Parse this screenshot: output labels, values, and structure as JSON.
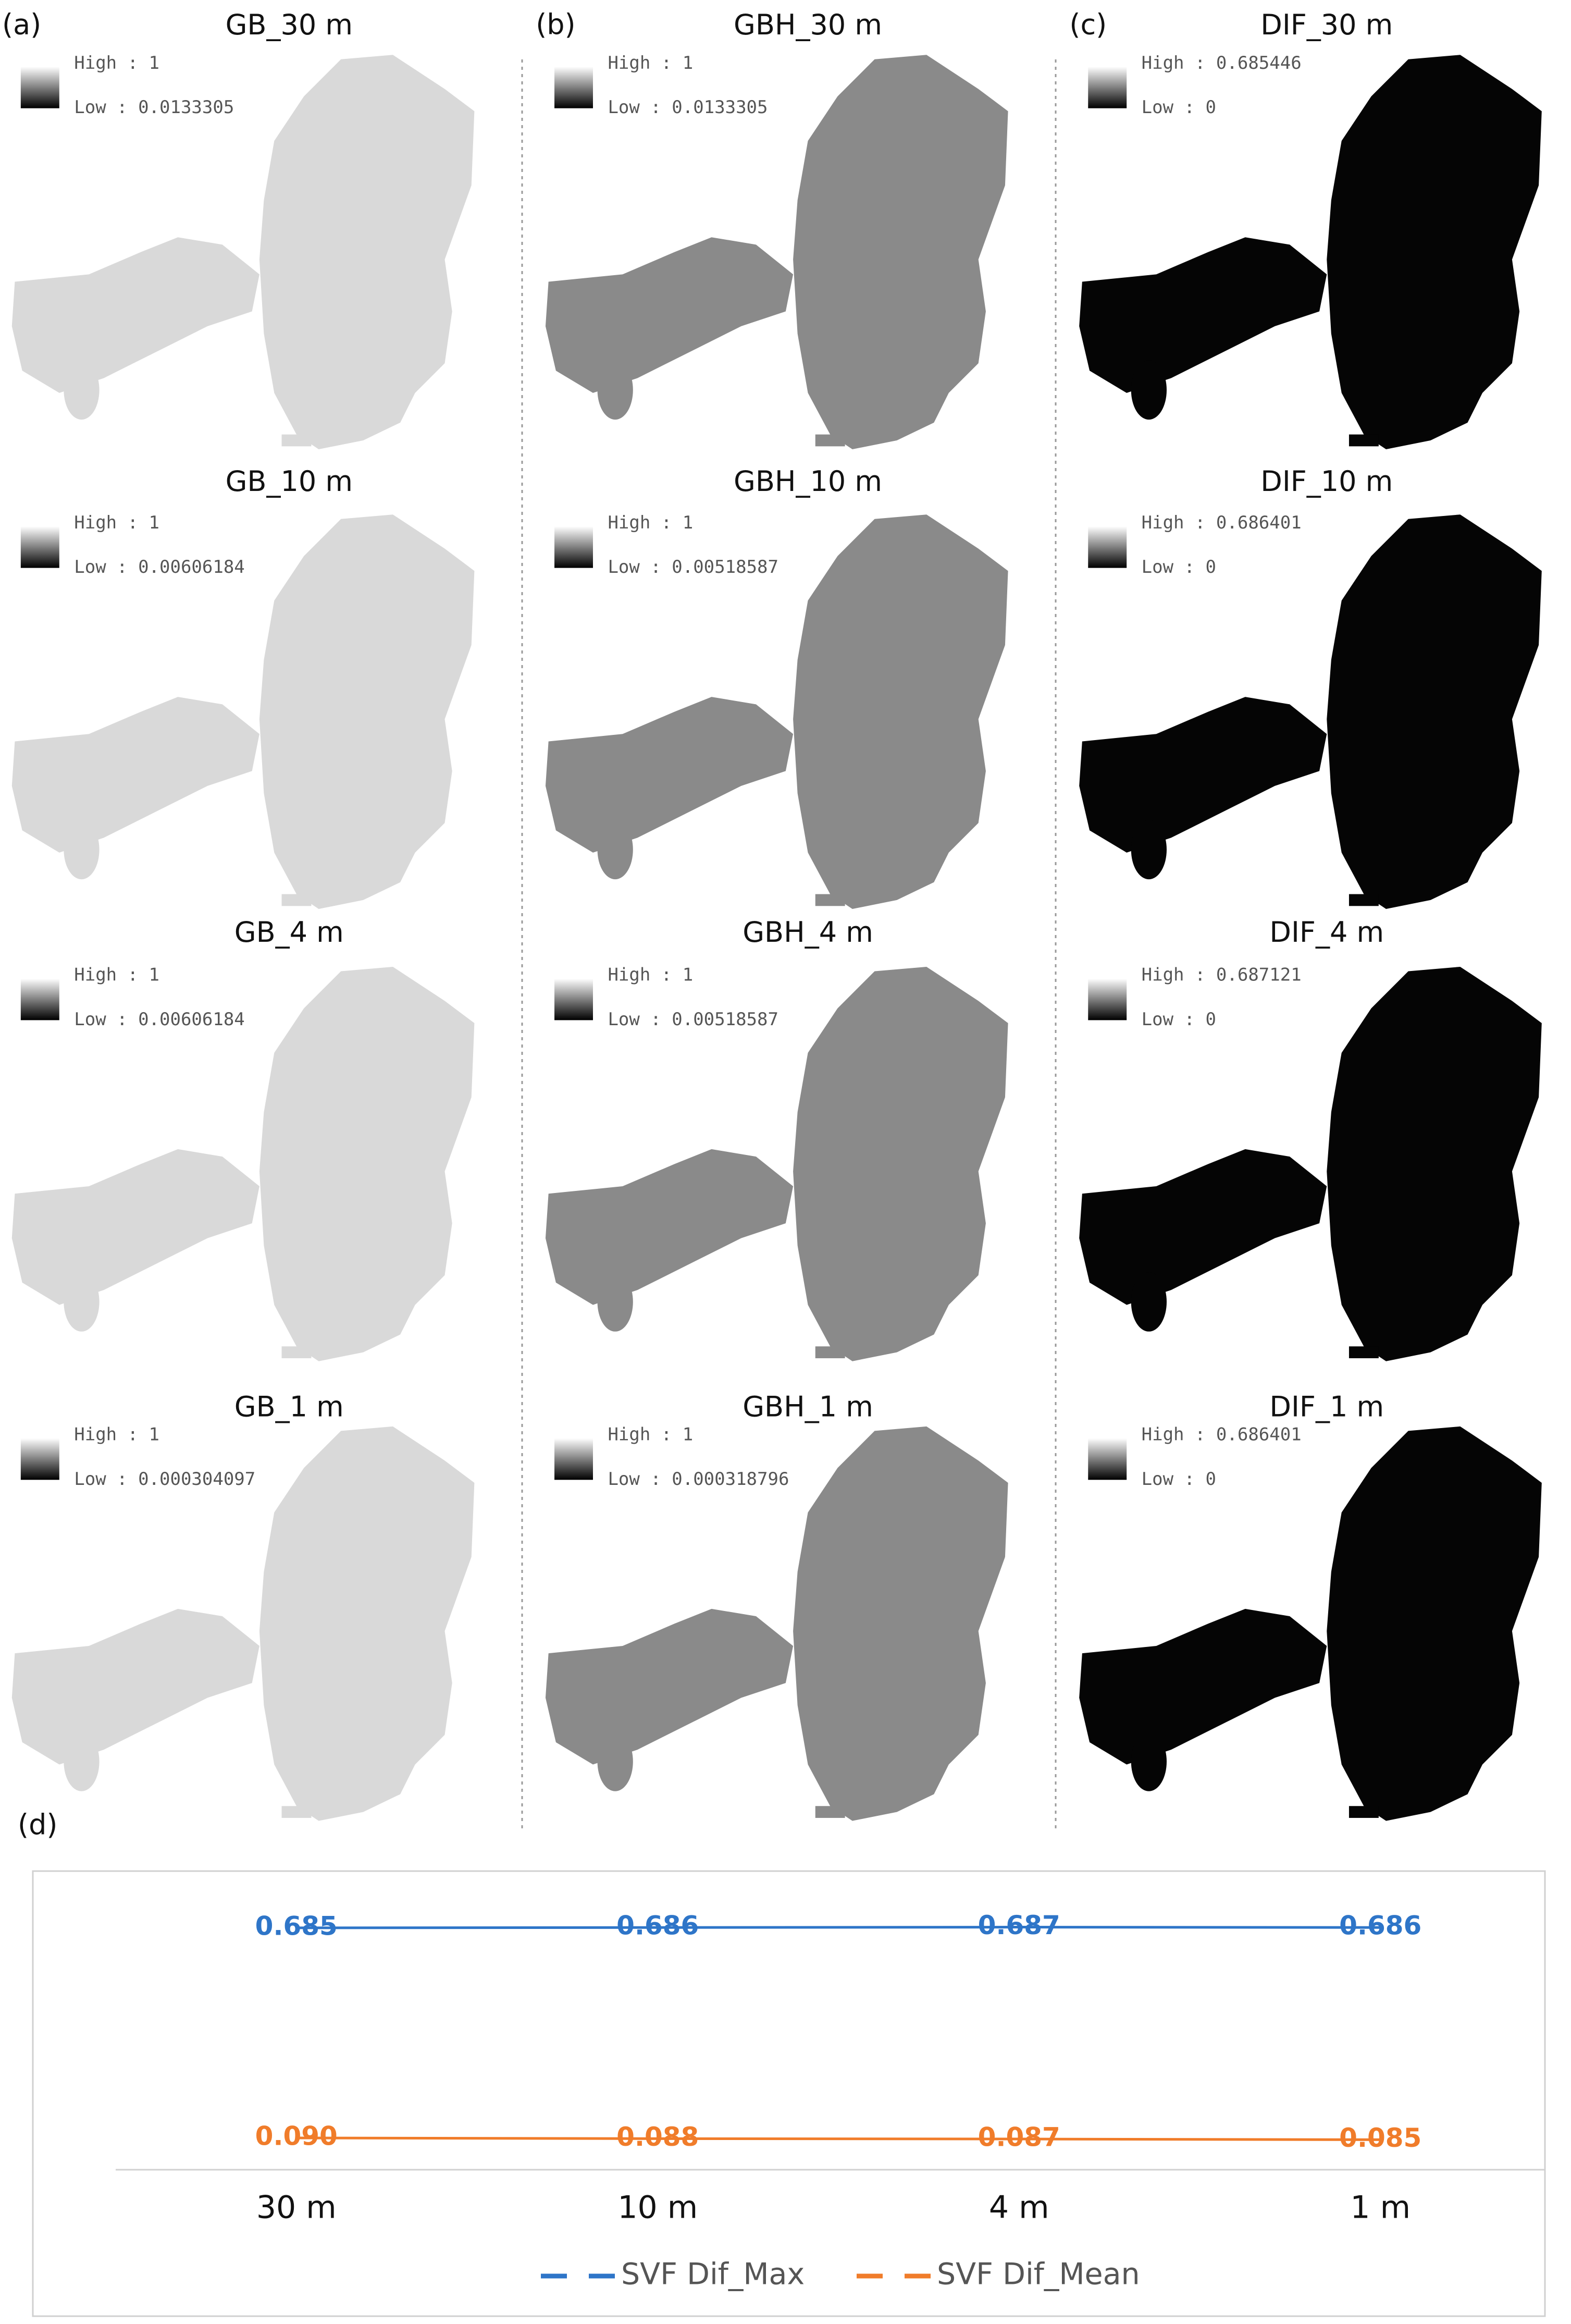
{
  "panels": [
    {
      "label": "(a)",
      "maps": [
        {
          "title": "GB_30 m",
          "high": "High : 1",
          "low": "Low : 0.0133305"
        },
        {
          "title": "GB_10 m",
          "high": "High : 1",
          "low": "Low : 0.00606184"
        },
        {
          "title": "GB_4 m",
          "high": "High : 1",
          "low": "Low : 0.00606184"
        },
        {
          "title": "GB_1 m",
          "high": "High : 1",
          "low": "Low : 0.000304097"
        }
      ]
    },
    {
      "label": "(b)",
      "maps": [
        {
          "title": "GBH_30 m",
          "high": "High : 1",
          "low": "Low : 0.0133305"
        },
        {
          "title": "GBH_10 m",
          "high": "High : 1",
          "low": "Low : 0.00518587"
        },
        {
          "title": "GBH_4 m",
          "high": "High : 1",
          "low": "Low : 0.00518587"
        },
        {
          "title": "GBH_1 m",
          "high": "High : 1",
          "low": "Low : 0.000318796"
        }
      ]
    },
    {
      "label": "(c)",
      "maps": [
        {
          "title": "DIF_30 m",
          "high": "High : 0.685446",
          "low": "Low : 0"
        },
        {
          "title": "DIF_10 m",
          "high": "High : 0.686401",
          "low": "Low : 0"
        },
        {
          "title": "DIF_4 m",
          "high": "High : 0.687121",
          "low": "Low : 0"
        },
        {
          "title": "DIF_1 m",
          "high": "High : 0.686401",
          "low": "Low : 0"
        }
      ]
    }
  ],
  "chart_data": {
    "type": "line",
    "label": "(d)",
    "categories": [
      "30 m",
      "10 m",
      "4 m",
      "1 m"
    ],
    "series": [
      {
        "name": "SVF Dif_Max",
        "color": "#2e75c8",
        "values": [
          0.685,
          0.686,
          0.687,
          0.686
        ]
      },
      {
        "name": "SVF Dif_Mean",
        "color": "#f07c2a",
        "values": [
          0.09,
          0.088,
          0.087,
          0.085
        ],
        "value_labels": [
          "0.090",
          "0.088",
          "0.087",
          "0.085"
        ]
      }
    ],
    "ylim": [
      0,
      0.8
    ]
  }
}
